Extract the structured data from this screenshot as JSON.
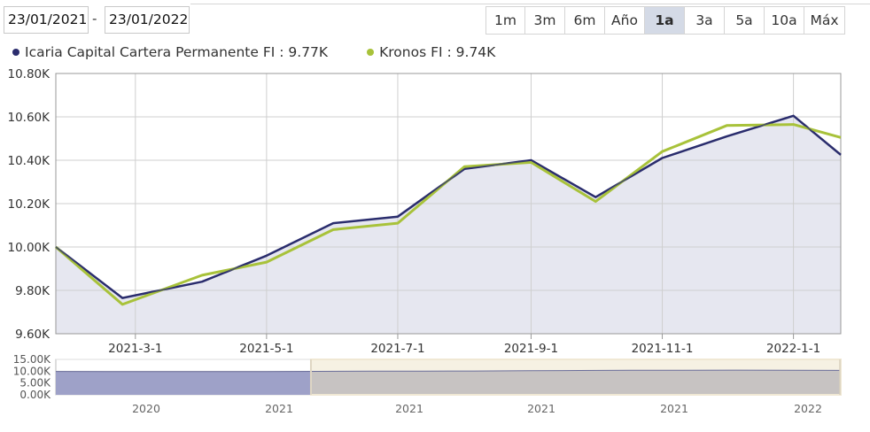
{
  "toolbar": {
    "date_from": "23/01/2021",
    "date_to": "23/01/2022",
    "separator": "-",
    "ranges": [
      {
        "label": "1m",
        "active": false
      },
      {
        "label": "3m",
        "active": false
      },
      {
        "label": "6m",
        "active": false
      },
      {
        "label": "Año",
        "active": false
      },
      {
        "label": "1a",
        "active": true
      },
      {
        "label": "3a",
        "active": false
      },
      {
        "label": "5a",
        "active": false
      },
      {
        "label": "10a",
        "active": false
      },
      {
        "label": "Máx",
        "active": false
      }
    ]
  },
  "legend": [
    {
      "name": "Icaria Capital Cartera Permanente FI",
      "value": "9.77K",
      "color": "#2b2d6e"
    },
    {
      "name": "Kronos FI",
      "value": "9.74K",
      "color": "#a8c23a"
    }
  ],
  "chart_data": {
    "type": "line",
    "title": "",
    "xlabel": "",
    "ylabel": "",
    "ylim": [
      9600,
      10800
    ],
    "y_ticks": [
      9600,
      9800,
      10000,
      10200,
      10400,
      10600,
      10800
    ],
    "y_tick_labels": [
      "9.60K",
      "9.80K",
      "10.00K",
      "10.20K",
      "10.40K",
      "10.60K",
      "10.80K"
    ],
    "x_range": [
      "2021-01-23",
      "2022-01-23"
    ],
    "x_ticks": [
      "2021-03-01",
      "2021-05-01",
      "2021-07-01",
      "2021-09-01",
      "2021-11-01",
      "2022-01-01"
    ],
    "x_tick_labels": [
      "2021-3-1",
      "2021-5-1",
      "2021-7-1",
      "2021-9-1",
      "2021-11-1",
      "2022-1-1"
    ],
    "grid": true,
    "legend_position": "top-left",
    "series": [
      {
        "name": "Icaria Capital Cartera Permanente FI",
        "color": "#2b2d6e",
        "fill": "#e6e7f0",
        "points": [
          [
            "2021-01-23",
            10000
          ],
          [
            "2021-02-23",
            9765
          ],
          [
            "2021-04-01",
            9840
          ],
          [
            "2021-05-01",
            9960
          ],
          [
            "2021-06-01",
            10110
          ],
          [
            "2021-07-01",
            10140
          ],
          [
            "2021-08-01",
            10360
          ],
          [
            "2021-09-01",
            10400
          ],
          [
            "2021-10-01",
            10230
          ],
          [
            "2021-11-01",
            10410
          ],
          [
            "2021-12-01",
            10510
          ],
          [
            "2022-01-01",
            10605
          ],
          [
            "2022-01-23",
            10425
          ]
        ]
      },
      {
        "name": "Kronos FI",
        "color": "#a8c23a",
        "points": [
          [
            "2021-01-23",
            10000
          ],
          [
            "2021-02-23",
            9735
          ],
          [
            "2021-04-01",
            9870
          ],
          [
            "2021-05-01",
            9930
          ],
          [
            "2021-06-01",
            10080
          ],
          [
            "2021-07-01",
            10110
          ],
          [
            "2021-08-01",
            10370
          ],
          [
            "2021-09-01",
            10390
          ],
          [
            "2021-10-01",
            10210
          ],
          [
            "2021-11-01",
            10440
          ],
          [
            "2021-12-01",
            10560
          ],
          [
            "2022-01-01",
            10565
          ],
          [
            "2022-01-23",
            10505
          ]
        ]
      }
    ],
    "navigator": {
      "ylim": [
        0,
        15000
      ],
      "y_tick_labels": [
        "15.00K",
        "10.00K",
        "5.00K",
        "0.00K"
      ],
      "y_ticks": [
        15000,
        10000,
        5000,
        0
      ],
      "x_tick_labels": [
        "2020",
        "2021",
        "2021",
        "2021",
        "2021",
        "2022"
      ],
      "line_values": [
        9900,
        9850,
        9860,
        9870,
        9880,
        9950,
        10000,
        10050,
        10100,
        10200,
        10300,
        10400,
        10430,
        10450,
        10400,
        10350
      ],
      "selected_fraction": [
        0.325,
        1.0
      ],
      "unselected_color": "#9ea1c8",
      "selected_color": "#c7c3c2",
      "selected_border_color": "#f0e8d4"
    }
  }
}
